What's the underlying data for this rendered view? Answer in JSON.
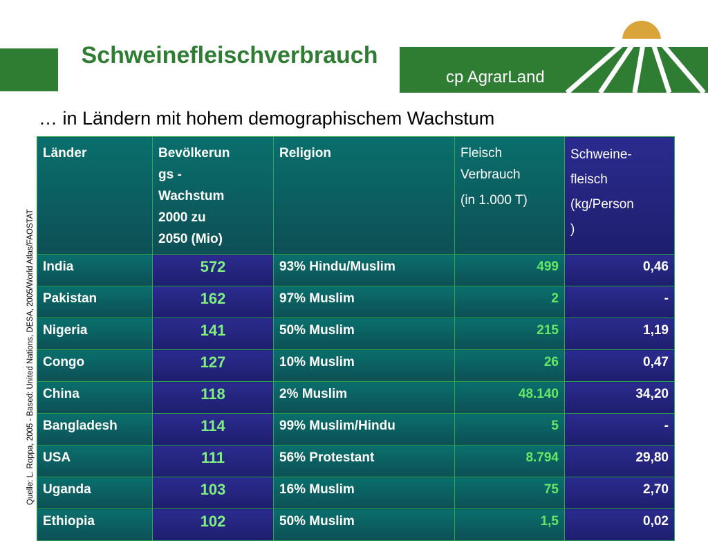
{
  "title": "Schweinefleischverbrauch",
  "subtitle": "… in Ländern mit hohem demographischem Wachstum",
  "logo": {
    "text": "cp AgrarLand"
  },
  "source_note": "Quelle: L. Roppa, 2005 - Based: United Nations, DESA, 2005/World Atlas/FAOSTAT",
  "table": {
    "headers": {
      "country": "Länder",
      "population_l1": "Bevölkerun",
      "population_l2": "gs -",
      "population_l3": "Wachstum",
      "population_l4": "2000 zu",
      "population_l5": "2050 (Mio)",
      "religion": "Religion",
      "meat_l1": "Fleisch",
      "meat_l2": "Verbrauch",
      "meat_l3": "(in 1.000 T)",
      "pork_l1": "Schweine-",
      "pork_l2": "fleisch",
      "pork_l3": "(kg/Person",
      "pork_l4": ")"
    },
    "rows": [
      {
        "country": "India",
        "population": "572",
        "religion": "93% Hindu/Muslim",
        "meat": "499",
        "pork": "0,46"
      },
      {
        "country": "Pakistan",
        "population": "162",
        "religion": "97% Muslim",
        "meat": "2",
        "pork": "-"
      },
      {
        "country": "Nigeria",
        "population": "141",
        "religion": "50% Muslim",
        "meat": "215",
        "pork": "1,19"
      },
      {
        "country": "Congo",
        "population": "127",
        "religion": "10% Muslim",
        "meat": "26",
        "pork": "0,47"
      },
      {
        "country": "China",
        "population": "118",
        "religion": "2% Muslim",
        "meat": "48.140",
        "pork": "34,20"
      },
      {
        "country": "Bangladesh",
        "population": "114",
        "religion": "99% Muslim/Hindu",
        "meat": "5",
        "pork": "-"
      },
      {
        "country": "USA",
        "population": "111",
        "religion": "56% Protestant",
        "meat": "8.794",
        "pork": "29,80"
      },
      {
        "country": "Uganda",
        "population": "103",
        "religion": "16% Muslim",
        "meat": "75",
        "pork": "2,70"
      },
      {
        "country": "Ethiopia",
        "population": "102",
        "religion": "50% Muslim",
        "meat": "1,5",
        "pork": "0,02"
      }
    ]
  },
  "colors": {
    "brand_green": "#2e7d32",
    "header_teal": "#0a6f6c",
    "cell_navy": "#2b2b8f",
    "value_green": "#66e766",
    "sun": "#d9a43a"
  }
}
